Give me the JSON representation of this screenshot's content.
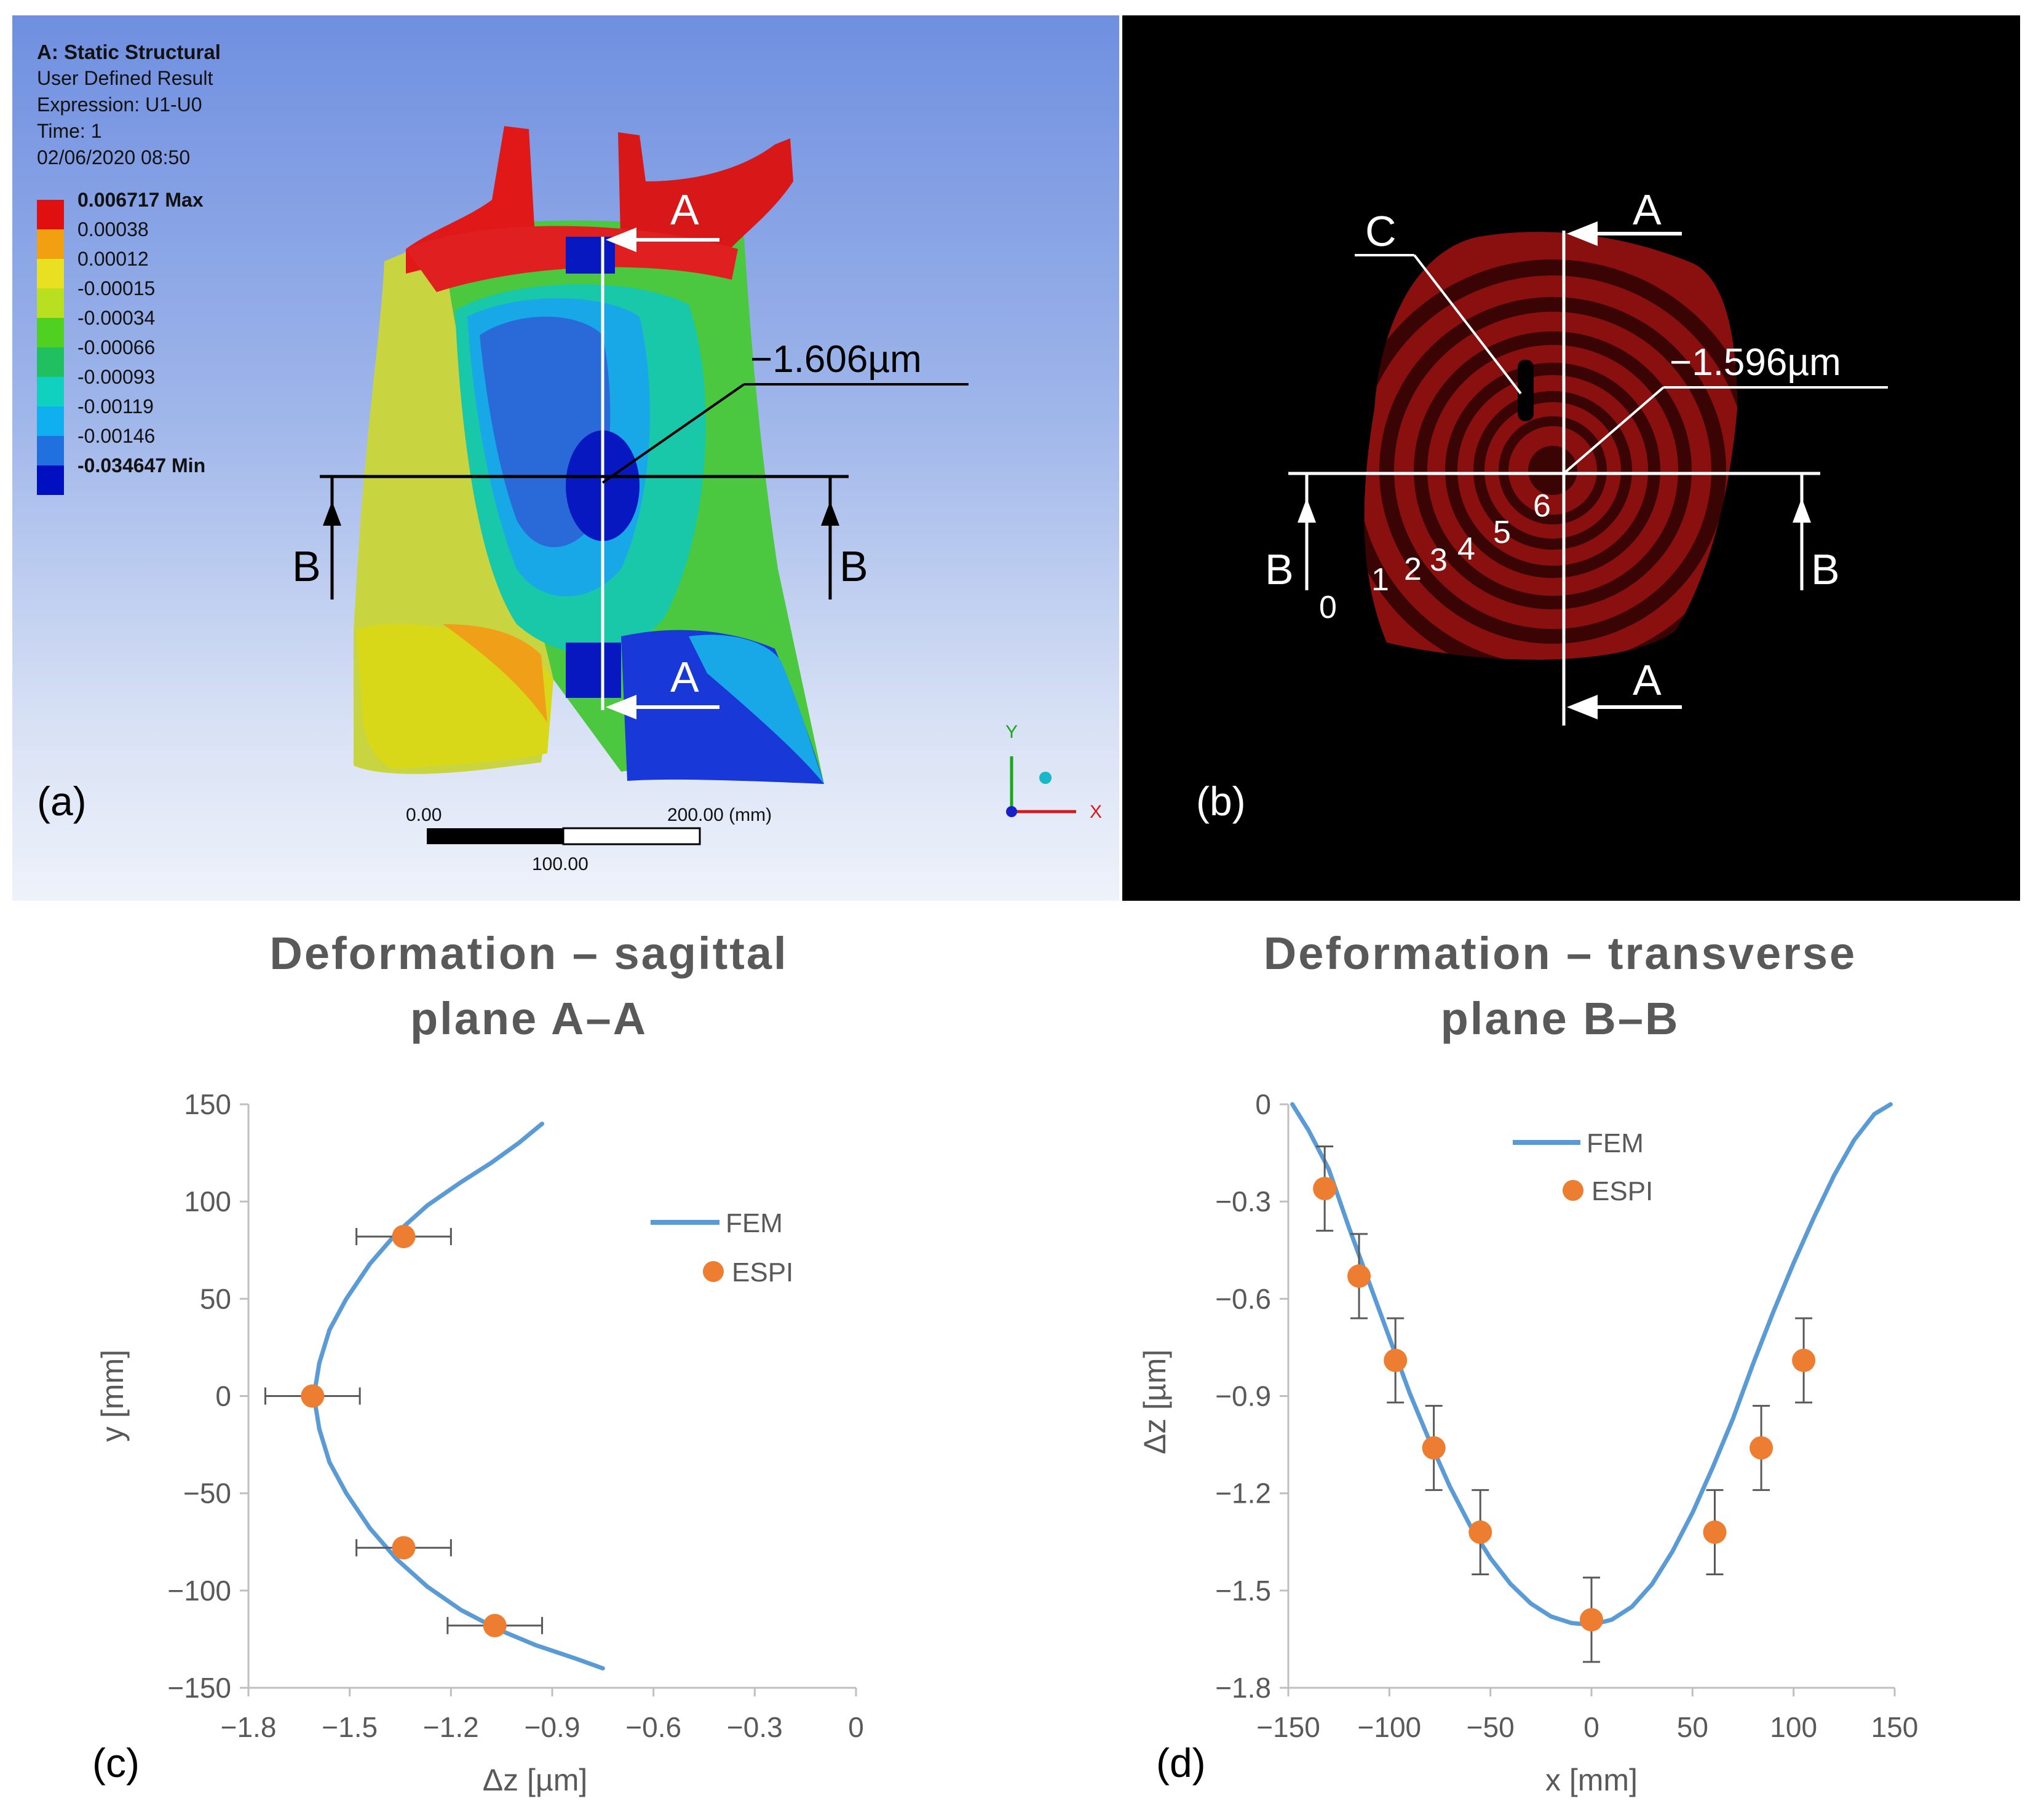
{
  "panel_a": {
    "label": "(a)",
    "header": [
      "A: Static Structural",
      "User Defined Result",
      "Expression: U1-U0",
      "Time: 1",
      "02/06/2020 08:50"
    ],
    "legend": [
      {
        "label": "0.006717 Max",
        "color": "#e01010",
        "bold": true
      },
      {
        "label": "0.00038",
        "color": "#f0a010"
      },
      {
        "label": "0.00012",
        "color": "#e8e020"
      },
      {
        "label": "-0.00015",
        "color": "#b8e020"
      },
      {
        "label": "-0.00034",
        "color": "#50d020"
      },
      {
        "label": "-0.00066",
        "color": "#20c060"
      },
      {
        "label": "-0.00093",
        "color": "#10d0c0"
      },
      {
        "label": "-0.00119",
        "color": "#10b0f0"
      },
      {
        "label": "-0.00146",
        "color": "#2070e0"
      },
      {
        "label": "-0.034647 Min",
        "color": "#0010c0",
        "bold": true
      }
    ],
    "callout": "−1.606µm",
    "section_labels": {
      "a_top": "A",
      "a_bottom": "A",
      "b_left": "B",
      "b_right": "B"
    },
    "scale_bar": {
      "left": "0.00",
      "right": "200.00 (mm)",
      "mid": "100.00"
    },
    "axes": {
      "y": "Y",
      "x": "X"
    }
  },
  "panel_b": {
    "label": "(b)",
    "callout": "−1.596µm",
    "marker_c": "C",
    "section_labels": {
      "a_top": "A",
      "a_bottom": "A",
      "b_left": "B",
      "b_right": "B"
    },
    "fringe_orders": [
      "0",
      "1",
      "2",
      "3",
      "4",
      "5",
      "6"
    ]
  },
  "chart_data": [
    {
      "type": "scatter",
      "panel_label": "(c)",
      "title": "Deformation – sagittal plane A–A",
      "title_lines": [
        "Deformation – sagittal",
        "plane A–A"
      ],
      "xlabel": "Δz [µm]",
      "ylabel": "y [mm]",
      "xlim": [
        -1.8,
        0
      ],
      "ylim": [
        -150,
        150
      ],
      "xticks": [
        -1.8,
        -1.5,
        -1.2,
        -0.9,
        -0.6,
        -0.3,
        0
      ],
      "xtick_labels": [
        "−1.8",
        "−1.5",
        "−1.2",
        "−0.9",
        "−0.6",
        "−0.3",
        "0"
      ],
      "yticks": [
        150,
        100,
        50,
        0,
        -50,
        -100,
        -150
      ],
      "ytick_labels": [
        "150",
        "100",
        "50",
        "0",
        "−50",
        "−100",
        "−150"
      ],
      "legend": {
        "position": "top-right",
        "entries": [
          "FEM",
          "ESPI"
        ]
      },
      "series": [
        {
          "name": "FEM",
          "kind": "line",
          "color": "#5b9bd5",
          "x": [
            -0.93,
            -1.0,
            -1.08,
            -1.17,
            -1.27,
            -1.36,
            -1.44,
            -1.51,
            -1.56,
            -1.59,
            -1.606,
            -1.59,
            -1.56,
            -1.51,
            -1.44,
            -1.36,
            -1.27,
            -1.17,
            -1.06,
            -0.95,
            -0.83,
            -0.75
          ],
          "y": [
            140,
            130,
            120,
            110,
            98,
            84,
            68,
            50,
            34,
            17,
            0,
            -17,
            -34,
            -50,
            -68,
            -84,
            -98,
            -110,
            -120,
            -128,
            -135,
            -140
          ]
        },
        {
          "name": "ESPI",
          "kind": "scatter",
          "color": "#ed7d31",
          "x": [
            -1.34,
            -1.61,
            -1.34,
            -1.07
          ],
          "y": [
            82,
            0,
            -78,
            -118
          ],
          "xerr": [
            0.14,
            0.14,
            0.14,
            0.14
          ]
        }
      ]
    },
    {
      "type": "scatter",
      "panel_label": "(d)",
      "title": "Deformation – transverse plane B–B",
      "title_lines": [
        "Deformation – transverse",
        "plane B–B"
      ],
      "xlabel": "x [mm]",
      "ylabel": "Δz [µm]",
      "xlim": [
        -150,
        150
      ],
      "ylim": [
        -1.8,
        0
      ],
      "xticks": [
        -150,
        -100,
        -50,
        0,
        50,
        100,
        150
      ],
      "xtick_labels": [
        "−150",
        "−100",
        "−50",
        "0",
        "50",
        "100",
        "150"
      ],
      "yticks": [
        0,
        -0.3,
        -0.6,
        -0.9,
        -1.2,
        -1.5,
        -1.8
      ],
      "ytick_labels": [
        "0",
        "−0.3",
        "−0.6",
        "−0.9",
        "−1.2",
        "−1.5",
        "−1.8"
      ],
      "legend": {
        "position": "top-center",
        "entries": [
          "FEM",
          "ESPI"
        ]
      },
      "series": [
        {
          "name": "FEM",
          "kind": "line",
          "color": "#5b9bd5",
          "x": [
            -148,
            -140,
            -130,
            -120,
            -110,
            -100,
            -90,
            -80,
            -70,
            -60,
            -50,
            -40,
            -30,
            -20,
            -10,
            0,
            10,
            20,
            30,
            40,
            50,
            60,
            70,
            80,
            90,
            100,
            110,
            120,
            130,
            140,
            148
          ],
          "y": [
            0,
            -0.08,
            -0.2,
            -0.38,
            -0.55,
            -0.72,
            -0.89,
            -1.04,
            -1.18,
            -1.3,
            -1.4,
            -1.48,
            -1.54,
            -1.58,
            -1.6,
            -1.606,
            -1.59,
            -1.55,
            -1.48,
            -1.38,
            -1.26,
            -1.12,
            -0.97,
            -0.8,
            -0.64,
            -0.49,
            -0.35,
            -0.22,
            -0.11,
            -0.03,
            0
          ]
        },
        {
          "name": "ESPI",
          "kind": "scatter",
          "color": "#ed7d31",
          "x": [
            -132,
            -115,
            -97,
            -78,
            -55,
            0,
            61,
            84,
            105
          ],
          "y": [
            -0.26,
            -0.53,
            -0.79,
            -1.06,
            -1.32,
            -1.59,
            -1.32,
            -1.06,
            -0.79
          ],
          "yerr": [
            0.13,
            0.13,
            0.13,
            0.13,
            0.13,
            0.13,
            0.13,
            0.13,
            0.13
          ]
        }
      ]
    }
  ]
}
